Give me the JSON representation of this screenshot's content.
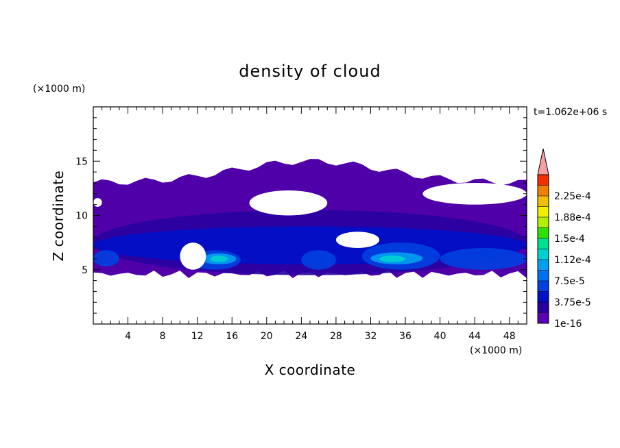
{
  "chart_data": {
    "type": "heatmap",
    "title": "density of cloud",
    "xlabel": "X coordinate",
    "ylabel": "Z coordinate",
    "x_unit": "(×1000 m)",
    "y_unit": "(×1000 m)",
    "time_label": "t=1.062e+06 s",
    "xlim": [
      0,
      50
    ],
    "ylim": [
      0,
      20
    ],
    "x_ticks": [
      "4",
      "8",
      "12",
      "16",
      "20",
      "24",
      "28",
      "32",
      "36",
      "40",
      "44",
      "48"
    ],
    "y_ticks": [
      "5",
      "10",
      "15"
    ],
    "colorbar": {
      "labels": [
        "1e-16",
        "3.75e-5",
        "7.5e-5",
        "1.12e-4",
        "1.5e-4",
        "1.88e-4",
        "2.25e-4"
      ],
      "levels": [
        1e-16,
        1.875e-05,
        3.75e-05,
        5.625e-05,
        7.5e-05,
        9.375e-05,
        0.000112,
        0.00013125,
        0.00015,
        0.00016875,
        0.000188,
        0.00020625,
        0.000225,
        0.00024375
      ],
      "colors": [
        "#5a00b4",
        "#2800a0",
        "#0010c8",
        "#0040e0",
        "#0070f0",
        "#00a0f0",
        "#00d0d0",
        "#00e090",
        "#30e000",
        "#b0f000",
        "#f0f000",
        "#f0c000",
        "#f08000",
        "#f03000"
      ],
      "extend_color": "#f4a0a0"
    },
    "field": {
      "background": "#ffffff",
      "base_color": "#5000a8",
      "base_layer": {
        "x_range": [
          0,
          50
        ],
        "z_range": [
          4.6,
          15.2
        ],
        "description_colors": [
          "#5000a8"
        ]
      },
      "regions": [
        {
          "x": [
            0,
            50
          ],
          "z": [
            4.5,
            10.5
          ],
          "level": 1
        },
        {
          "x": [
            0,
            50
          ],
          "z": [
            5.5,
            9.0
          ],
          "level": 2
        },
        {
          "x": [
            0,
            3
          ],
          "z": [
            5.3,
            6.8
          ],
          "level": 3
        },
        {
          "x": [
            11,
            17
          ],
          "z": [
            5.0,
            6.8
          ],
          "level": 3
        },
        {
          "x": [
            12.5,
            16.5
          ],
          "z": [
            5.5,
            6.5
          ],
          "level": 5
        },
        {
          "x": [
            13.5,
            15.5
          ],
          "z": [
            5.7,
            6.3
          ],
          "level": 6
        },
        {
          "x": [
            24,
            28
          ],
          "z": [
            5.0,
            6.8
          ],
          "level": 3
        },
        {
          "x": [
            31,
            40
          ],
          "z": [
            5.0,
            7.5
          ],
          "level": 3
        },
        {
          "x": [
            32,
            38
          ],
          "z": [
            5.5,
            6.6
          ],
          "level": 5
        },
        {
          "x": [
            33,
            36
          ],
          "z": [
            5.7,
            6.3
          ],
          "level": 6
        },
        {
          "x": [
            40,
            50
          ],
          "z": [
            5.0,
            7.0
          ],
          "level": 3
        }
      ],
      "gaps": [
        {
          "x": [
            18,
            27
          ],
          "z": [
            10.0,
            12.3
          ]
        },
        {
          "x": [
            10,
            13
          ],
          "z": [
            5.0,
            7.5
          ]
        },
        {
          "x": [
            28,
            33
          ],
          "z": [
            7.0,
            8.5
          ]
        },
        {
          "x": [
            38,
            50
          ],
          "z": [
            11.0,
            13.0
          ]
        },
        {
          "x": [
            0,
            1
          ],
          "z": [
            10.8,
            11.6
          ]
        }
      ]
    }
  }
}
